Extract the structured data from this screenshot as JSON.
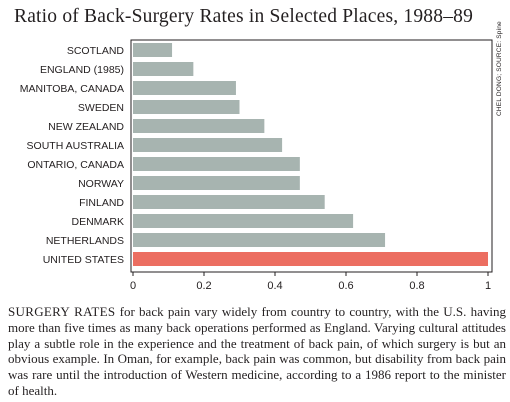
{
  "title": "Ratio of Back-Surgery Rates in Selected Places, 1988–89",
  "credit": "CHEL DONG; SOURCE: Spine",
  "caption": {
    "lead": "SURGERY RATES",
    "text": " for back pain vary widely from country to country, with the U.S. having more than five times as many back operations performed as England. Varying cultural attitudes play a subtle role in the experience and the treatment of back pain, of which surgery is but an obvious example. In Oman, for example, back pain was common, but disability from back pain was rare until the introduction of Western medicine, according to a 1986 report to the minister of health."
  },
  "colors": {
    "bar": "#a7b4b0",
    "highlight": "#ec6e61",
    "plot_border": "#231f20"
  },
  "chart_data": {
    "type": "bar",
    "orientation": "horizontal",
    "categories": [
      "SCOTLAND",
      "ENGLAND (1985)",
      "MANITOBA, CANADA",
      "SWEDEN",
      "NEW ZEALAND",
      "SOUTH AUSTRALIA",
      "ONTARIO, CANADA",
      "NORWAY",
      "FINLAND",
      "DENMARK",
      "NETHERLANDS",
      "UNITED STATES"
    ],
    "values": [
      0.11,
      0.17,
      0.29,
      0.3,
      0.37,
      0.42,
      0.47,
      0.47,
      0.54,
      0.62,
      0.71,
      1.0
    ],
    "highlight": "UNITED STATES",
    "xlim": [
      0,
      1
    ],
    "xticks": [
      0,
      0.2,
      0.4,
      0.6,
      0.8,
      1
    ],
    "xtick_labels": [
      "0",
      "0.2",
      "0.4",
      "0.6",
      "0.8",
      "1"
    ],
    "grid": false
  }
}
